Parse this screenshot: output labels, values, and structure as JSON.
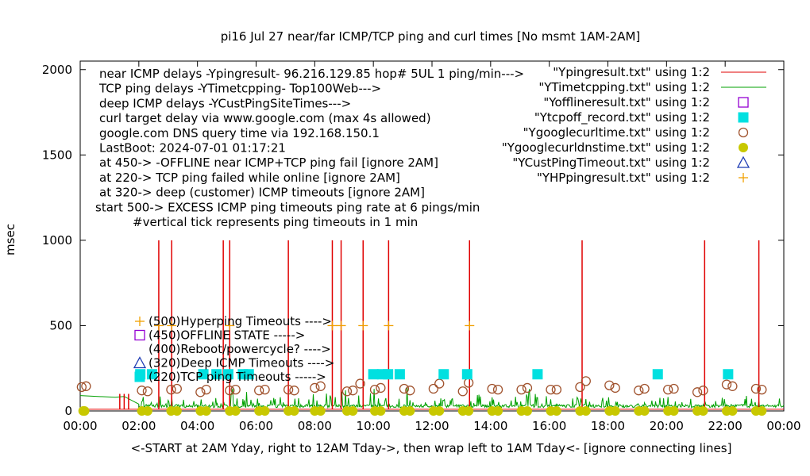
{
  "chart_data": {
    "type": "line",
    "title": "pi16 Jul 27  near/far ICMP/TCP ping and curl times [No msmt 1AM-2AM]",
    "xlabel": "<-START at 2AM Yday, right to 12AM Tday->, then wrap left to 1AM Tday<- [ignore connecting lines]",
    "ylabel": "msec",
    "xlim": [
      0,
      24
    ],
    "ylim": [
      0,
      2050
    ],
    "x_ticks": [
      "00:00",
      "02:00",
      "04:00",
      "06:00",
      "08:00",
      "10:00",
      "12:00",
      "14:00",
      "16:00",
      "18:00",
      "20:00",
      "22:00",
      "00:00"
    ],
    "y_ticks": [
      0,
      500,
      1000,
      1500,
      2000
    ],
    "grid": false,
    "legend_position": "top-right",
    "notes": [
      "near ICMP delays -Ypingresult- 96.216.129.85 hop# 5UL 1 ping/min--->",
      "TCP ping delays -YTimetcpping- Top100Web--->",
      "deep ICMP delays -YCustPingSiteTimes--->",
      "curl target delay via www.google.com (max 4s allowed)",
      "google.com DNS query time via 192.168.150.1",
      "LastBoot: 2024-07-01 01:17:21",
      "at 450-> -OFFLINE near ICMP+TCP ping fail [ignore 2AM]",
      "at 220-> TCP ping failed while online [ignore 2AM]",
      "at 320-> deep (customer) ICMP timeouts [ignore 2AM]",
      "start 500-> EXCESS ICMP ping timeouts ping rate at 6 pings/min",
      "#vertical tick represents ping timeouts in 1 min"
    ],
    "marker_key": [
      "(500)Hyperping Timeouts ---->",
      "(450)OFFLINE STATE ----->",
      "(400)Reboot/powercycle? ---->",
      "(320)Deep ICMP Timeouts ---->",
      "(220)TCP ping Timeouts ----->"
    ],
    "series": [
      {
        "name": "\"Ypingresult.txt\" using 1:2",
        "style": "line",
        "color": "#e00000",
        "baseline": 10,
        "spikes": [
          {
            "x": 1.35,
            "y": 100
          },
          {
            "x": 1.5,
            "y": 100
          },
          {
            "x": 1.65,
            "y": 100
          },
          {
            "x": 2.68,
            "y": 1000
          },
          {
            "x": 3.12,
            "y": 1000
          },
          {
            "x": 4.88,
            "y": 1000
          },
          {
            "x": 5.1,
            "y": 1000
          },
          {
            "x": 7.1,
            "y": 1000
          },
          {
            "x": 8.6,
            "y": 1000
          },
          {
            "x": 8.9,
            "y": 1000
          },
          {
            "x": 9.65,
            "y": 1000
          },
          {
            "x": 10.52,
            "y": 1000
          },
          {
            "x": 13.28,
            "y": 1000
          },
          {
            "x": 17.12,
            "y": 1000
          },
          {
            "x": 21.3,
            "y": 1000
          },
          {
            "x": 23.15,
            "y": 1000
          }
        ]
      },
      {
        "name": "\"YTimetcpping.txt\" using 1:2",
        "style": "line",
        "color": "#00a000",
        "baseline": 20,
        "early_segment": [
          [
            0,
            90
          ],
          [
            1.2,
            80
          ],
          [
            1.5,
            85
          ],
          [
            2.0,
            40
          ]
        ]
      },
      {
        "name": "\"Yofflineresult.txt\" using 1:2",
        "style": "open-square",
        "color": "#9400d3",
        "points": []
      },
      {
        "name": "\"Ytcpoff_record.txt\" using 1:2",
        "style": "filled-square",
        "color": "#00e0e0",
        "y": 215,
        "points": [
          2.05,
          2.45,
          4.2,
          4.65,
          5.05,
          5.55,
          5.75,
          10.0,
          10.3,
          10.5,
          10.9,
          12.4,
          13.2,
          15.6,
          19.7,
          22.1
        ]
      },
      {
        "name": "\"Ygooglecurltime.txt\" using 1:2",
        "style": "open-circle",
        "color": "#a0522d",
        "points": [
          [
            0.05,
            140
          ],
          [
            0.2,
            145
          ],
          [
            2.1,
            120
          ],
          [
            2.3,
            115
          ],
          [
            3.1,
            125
          ],
          [
            3.3,
            130
          ],
          [
            4.1,
            110
          ],
          [
            4.3,
            125
          ],
          [
            5.1,
            120
          ],
          [
            5.3,
            125
          ],
          [
            6.1,
            120
          ],
          [
            6.3,
            125
          ],
          [
            7.1,
            125
          ],
          [
            7.3,
            120
          ],
          [
            8.0,
            135
          ],
          [
            8.2,
            145
          ],
          [
            9.1,
            115
          ],
          [
            9.3,
            120
          ],
          [
            9.55,
            160
          ],
          [
            10.05,
            125
          ],
          [
            10.25,
            135
          ],
          [
            11.05,
            130
          ],
          [
            11.25,
            120
          ],
          [
            12.05,
            130
          ],
          [
            12.25,
            160
          ],
          [
            13.05,
            115
          ],
          [
            13.25,
            165
          ],
          [
            14.05,
            130
          ],
          [
            14.25,
            125
          ],
          [
            15.05,
            125
          ],
          [
            15.25,
            135
          ],
          [
            16.05,
            125
          ],
          [
            16.25,
            125
          ],
          [
            17.05,
            140
          ],
          [
            17.25,
            175
          ],
          [
            18.05,
            150
          ],
          [
            18.25,
            135
          ],
          [
            19.05,
            120
          ],
          [
            19.25,
            130
          ],
          [
            20.05,
            125
          ],
          [
            20.25,
            130
          ],
          [
            21.05,
            110
          ],
          [
            21.25,
            120
          ],
          [
            22.05,
            155
          ],
          [
            22.25,
            145
          ],
          [
            23.05,
            130
          ],
          [
            23.25,
            125
          ]
        ]
      },
      {
        "name": "\"Ygooglecurldnstime.txt\" using 1:2",
        "style": "filled-circle",
        "color": "#c8c800",
        "y": 0,
        "points": [
          0.1,
          0.15,
          2.1,
          2.3,
          3.1,
          3.3,
          4.1,
          4.3,
          5.1,
          5.3,
          6.1,
          6.3,
          7.1,
          7.3,
          8.0,
          8.2,
          9.1,
          9.3,
          10.05,
          10.25,
          11.05,
          11.25,
          12.05,
          12.25,
          13.05,
          13.25,
          14.05,
          14.25,
          15.05,
          15.25,
          16.05,
          16.25,
          17.05,
          17.25,
          18.05,
          18.25,
          19.05,
          19.25,
          20.05,
          20.25,
          21.05,
          21.25,
          22.05,
          22.25,
          23.05,
          23.25
        ]
      },
      {
        "name": "\"YCustPingTimeout.txt\" using 1:2",
        "style": "open-triangle",
        "color": "#1e3cb4",
        "points": []
      },
      {
        "name": "\"YHPpingresult.txt\" using 1:2",
        "style": "plus",
        "color": "#f0a000",
        "y": 500,
        "points": [
          2.68,
          3.12,
          5.1,
          8.6,
          8.9,
          9.65,
          10.52,
          13.28
        ]
      }
    ]
  }
}
